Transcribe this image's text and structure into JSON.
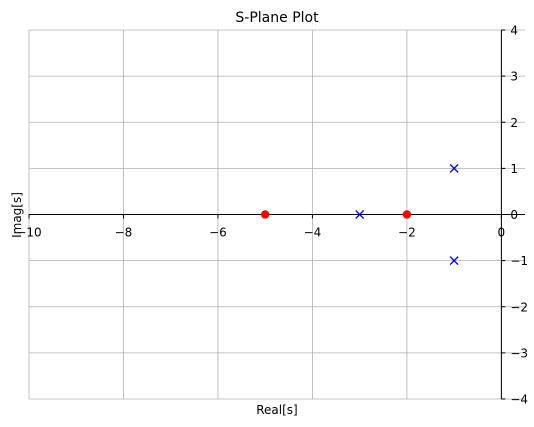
{
  "chart_data": {
    "type": "scatter",
    "title": "S-Plane Plot",
    "xlabel": "Real[s]",
    "ylabel": "Imag[s]",
    "xlim": [
      -10,
      0.5
    ],
    "ylim": [
      -4,
      4
    ],
    "xticks": [
      -10,
      -8,
      -6,
      -4,
      -2,
      0
    ],
    "yticks": [
      -4,
      -3,
      -2,
      -1,
      0,
      1,
      2,
      3,
      4
    ],
    "xtick_labels": [
      "−10",
      "−8",
      "−6",
      "−4",
      "−2",
      "0"
    ],
    "ytick_labels": [
      "−4",
      "−3",
      "−2",
      "−1",
      "0",
      "1",
      "2",
      "3",
      "4"
    ],
    "grid": true,
    "series": [
      {
        "marker": "x",
        "color": "#0000ff",
        "points": [
          {
            "x": -3,
            "y": 0
          },
          {
            "x": -1,
            "y": 1
          },
          {
            "x": -1,
            "y": -1
          }
        ]
      },
      {
        "marker": "o",
        "color": "#ff0000",
        "points": [
          {
            "x": -5,
            "y": 0
          },
          {
            "x": -2,
            "y": 0
          }
        ]
      }
    ]
  }
}
